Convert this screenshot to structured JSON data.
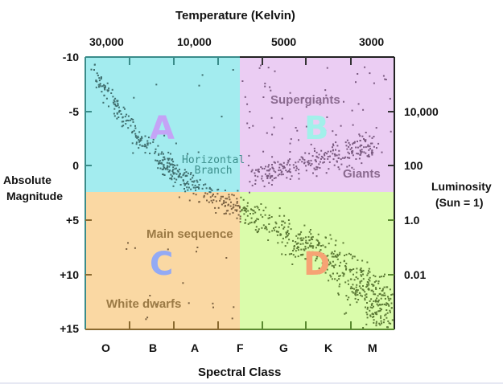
{
  "chart_data": {
    "type": "scatter",
    "title": "Temperature (Kelvin)",
    "xlabel": "Spectral Class",
    "ylabel": "Absolute Magnitude",
    "y2label": "Luminosity (Sun = 1)",
    "x_categories": [
      "O",
      "B",
      "A",
      "F",
      "G",
      "K",
      "M"
    ],
    "top_ticks": [
      "30,000",
      "10,000",
      "5000",
      "3000"
    ],
    "y_ticks": [
      "-10",
      "-5",
      "0",
      "+5",
      "+10",
      "+15"
    ],
    "ylim": [
      -10,
      15
    ],
    "y2_ticks": [
      "10,000",
      "100",
      "1.0",
      "0.01"
    ],
    "quadrants": [
      {
        "label": "A",
        "color": "#a3ecef",
        "label_color": "#c4a3f6"
      },
      {
        "label": "B",
        "color": "#ebcdf3",
        "label_color": "#a2f0ea"
      },
      {
        "label": "C",
        "color": "#fad8a3",
        "label_color": "#93aaf5"
      },
      {
        "label": "D",
        "color": "#dafcab",
        "label_color": "#f6a374"
      }
    ],
    "annotations": {
      "supergiants": "Supergiants",
      "giants": "Giants",
      "horizontal_branch_1": "Horizontal",
      "horizontal_branch_2": "Branch",
      "main_sequence": "Main sequence",
      "white_dwarfs": "White dwarfs"
    },
    "y_label_line1": "Absolute",
    "y_label_line2": "Magnitude",
    "y2_label_line1": "Luminosity",
    "y2_label_line2": "(Sun = 1)"
  }
}
